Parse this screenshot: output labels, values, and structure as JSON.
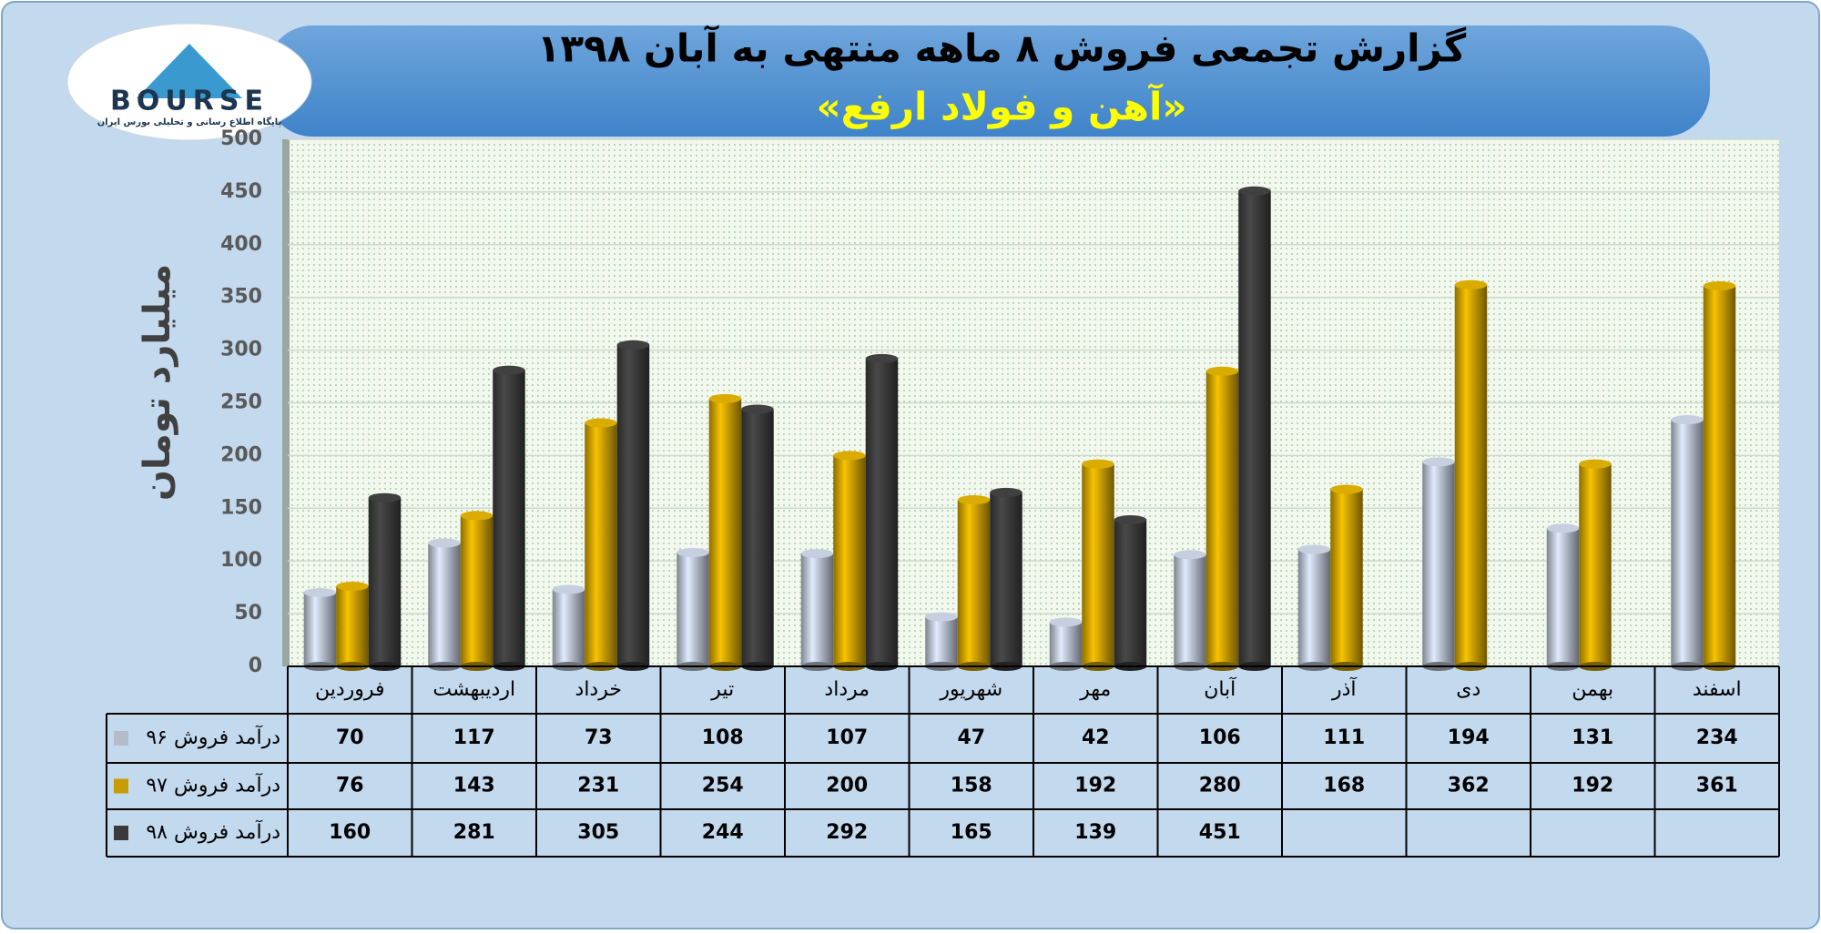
{
  "logo": {
    "name": "BOURSE",
    "tagline": "پایگاه اطلاع رسانی و تحلیلی بورس ایران"
  },
  "chart_data": {
    "type": "bar",
    "title": "گزارش تجمعی فروش ۸ ماهه منتهی به آبان ۱۳۹۸",
    "subtitle": "«آهن و فولاد ارفع»",
    "y_label": "میلیارد تومان",
    "categories": [
      "فروردین",
      "اردیبهشت",
      "خرداد",
      "تیر",
      "مرداد",
      "شهریور",
      "مهر",
      "آبان",
      "آذر",
      "دی",
      "بهمن",
      "اسفند"
    ],
    "series": [
      {
        "name": "درآمد فروش ۹۶",
        "color": "#b4bccb",
        "values": [
          70,
          117,
          73,
          108,
          107,
          47,
          42,
          106,
          111,
          194,
          131,
          234
        ]
      },
      {
        "name": "درآمد فروش ۹۷",
        "color": "#c79c00",
        "values": [
          76,
          143,
          231,
          254,
          200,
          158,
          192,
          280,
          168,
          362,
          192,
          361
        ]
      },
      {
        "name": "درآمد فروش ۹۸",
        "color": "#3a3a3a",
        "values": [
          160,
          281,
          305,
          244,
          292,
          165,
          139,
          451,
          null,
          null,
          null,
          null
        ]
      }
    ],
    "ylim": [
      0,
      500
    ],
    "yticks": [
      0,
      50,
      100,
      150,
      200,
      250,
      300,
      350,
      400,
      450,
      500
    ],
    "grid": true
  }
}
